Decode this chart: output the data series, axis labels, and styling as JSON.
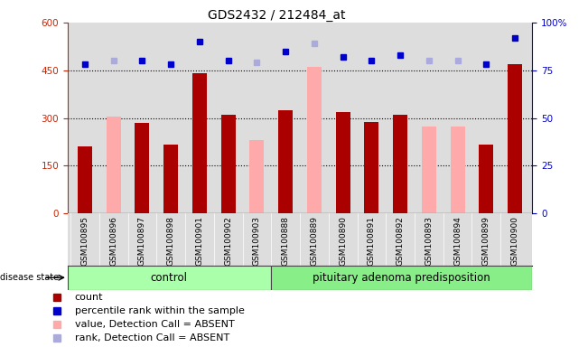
{
  "title": "GDS2432 / 212484_at",
  "samples": [
    "GSM100895",
    "GSM100896",
    "GSM100897",
    "GSM100898",
    "GSM100901",
    "GSM100902",
    "GSM100903",
    "GSM100888",
    "GSM100889",
    "GSM100890",
    "GSM100891",
    "GSM100892",
    "GSM100893",
    "GSM100894",
    "GSM100899",
    "GSM100900"
  ],
  "count_values": [
    210,
    null,
    285,
    215,
    440,
    310,
    null,
    325,
    null,
    318,
    288,
    310,
    null,
    null,
    215,
    468
  ],
  "absent_value_values": [
    null,
    305,
    null,
    null,
    null,
    null,
    230,
    null,
    462,
    null,
    null,
    null,
    272,
    272,
    null,
    null
  ],
  "rank_pct": [
    78,
    null,
    80,
    78,
    90,
    80,
    null,
    85,
    null,
    82,
    80,
    83,
    null,
    null,
    78,
    92
  ],
  "rank_absent_pct": [
    null,
    80,
    null,
    null,
    null,
    null,
    79,
    null,
    89,
    null,
    null,
    null,
    80,
    80,
    null,
    null
  ],
  "group_labels": [
    "control",
    "pituitary adenoma predisposition"
  ],
  "group1_count": 7,
  "group2_count": 9,
  "group_color1": "#aaffaa",
  "group_color2": "#88ee88",
  "bar_color_dark": "#aa0000",
  "bar_color_absent": "#ffaaaa",
  "dot_color_dark": "#0000cc",
  "dot_color_absent": "#aaaadd",
  "bg_color": "#dddddd",
  "ylim_left": [
    0,
    600
  ],
  "ylim_right": [
    0,
    100
  ],
  "yticks_left": [
    0,
    150,
    300,
    450,
    600
  ],
  "yticks_right": [
    0,
    25,
    50,
    75,
    100
  ],
  "grid_lines": [
    150,
    300,
    450
  ],
  "legend_items": [
    {
      "label": "count",
      "color": "#aa0000"
    },
    {
      "label": "percentile rank within the sample",
      "color": "#0000cc"
    },
    {
      "label": "value, Detection Call = ABSENT",
      "color": "#ffaaaa"
    },
    {
      "label": "rank, Detection Call = ABSENT",
      "color": "#aaaadd"
    }
  ]
}
